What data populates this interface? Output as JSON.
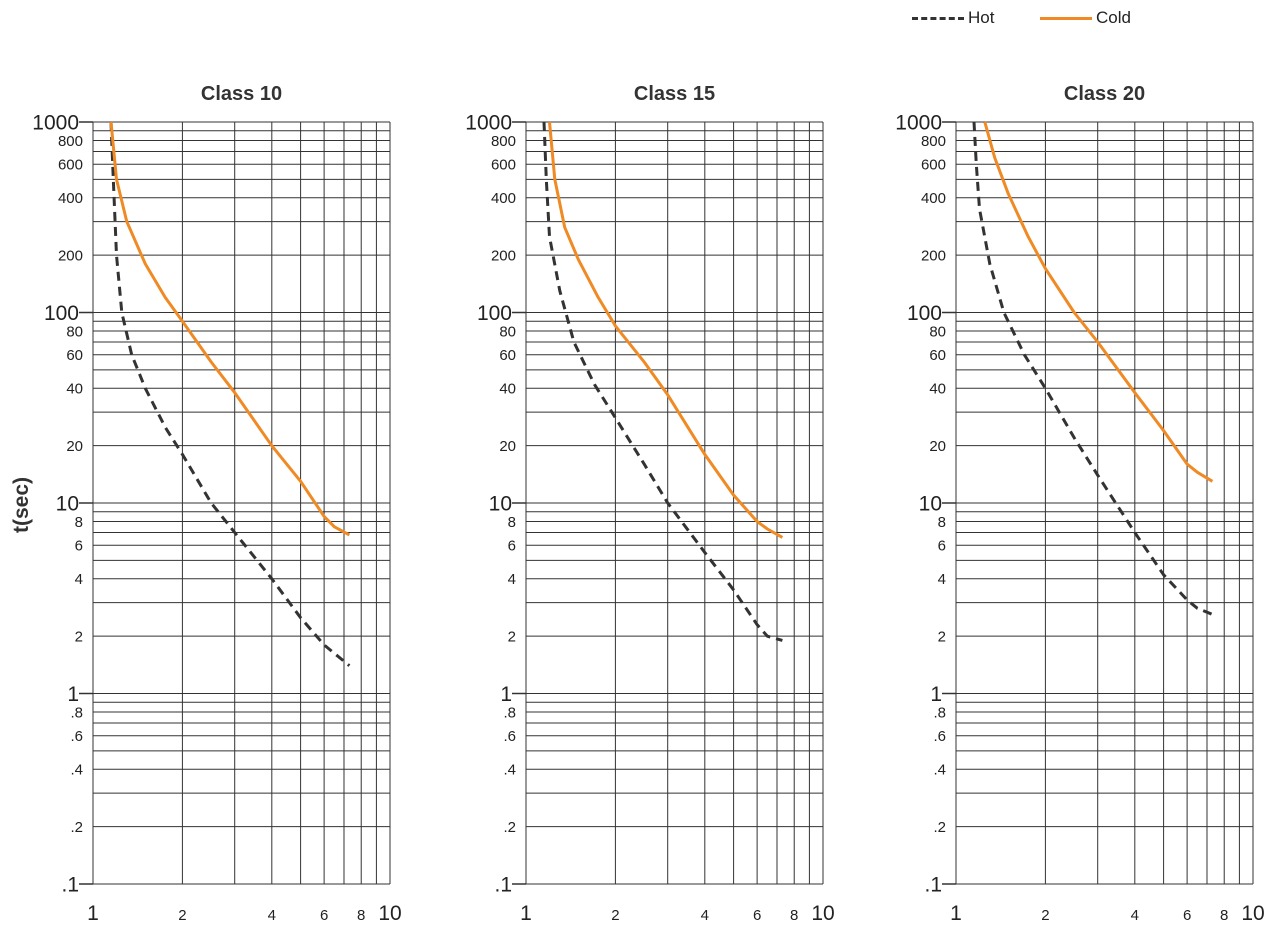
{
  "legend": {
    "hot_label": "Hot",
    "cold_label": "Cold"
  },
  "ylabel": "t(sec)",
  "colors": {
    "hot": "#333333",
    "cold": "#f08a24",
    "grid": "#333333"
  },
  "chart_data": [
    {
      "type": "line",
      "title": "Class 10",
      "xscale": "log",
      "yscale": "log",
      "xlim": [
        1,
        10
      ],
      "ylim": [
        0.1,
        1000
      ],
      "xticks": [
        "1",
        "2",
        "4",
        "6",
        "8",
        "10"
      ],
      "yticks": [
        ".1",
        ".2",
        ".4",
        ".6",
        ".8",
        "1",
        "2",
        "4",
        "6",
        "8",
        "10",
        "20",
        "40",
        "60",
        "80",
        "100",
        "200",
        "400",
        "600",
        "800",
        "1000"
      ],
      "grid": true,
      "series": [
        {
          "name": "Hot",
          "style": "dashed",
          "x": [
            1.15,
            1.17,
            1.2,
            1.25,
            1.35,
            1.5,
            1.75,
            2,
            2.5,
            3,
            4,
            5,
            6,
            7.3
          ],
          "y": [
            1000,
            500,
            200,
            100,
            60,
            40,
            25,
            18,
            10,
            7,
            4,
            2.5,
            1.8,
            1.4
          ]
        },
        {
          "name": "Cold",
          "style": "solid",
          "x": [
            1.15,
            1.2,
            1.3,
            1.5,
            1.75,
            2,
            2.5,
            3,
            4,
            5,
            6,
            6.5,
            7.3
          ],
          "y": [
            1000,
            500,
            300,
            180,
            120,
            90,
            55,
            38,
            20,
            13,
            8.5,
            7.5,
            6.8
          ]
        }
      ]
    },
    {
      "type": "line",
      "title": "Class 15",
      "xscale": "log",
      "yscale": "log",
      "xlim": [
        1,
        10
      ],
      "ylim": [
        0.1,
        1000
      ],
      "xticks": [
        "1",
        "2",
        "4",
        "6",
        "8",
        "10"
      ],
      "yticks": [
        ".1",
        ".2",
        ".4",
        ".6",
        ".8",
        "1",
        "2",
        "4",
        "6",
        "8",
        "10",
        "20",
        "40",
        "60",
        "80",
        "100",
        "200",
        "400",
        "600",
        "800",
        "1000"
      ],
      "grid": true,
      "series": [
        {
          "name": "Hot",
          "style": "dashed",
          "x": [
            1.15,
            1.17,
            1.2,
            1.3,
            1.45,
            1.7,
            2,
            2.5,
            3,
            4,
            5,
            6,
            6.5,
            7.3
          ],
          "y": [
            1000,
            500,
            250,
            130,
            70,
            42,
            28,
            16,
            10,
            5.5,
            3.5,
            2.3,
            2,
            1.9
          ]
        },
        {
          "name": "Cold",
          "style": "solid",
          "x": [
            1.2,
            1.25,
            1.35,
            1.5,
            1.75,
            2,
            2.5,
            3,
            4,
            5,
            6,
            6.5,
            7.3
          ],
          "y": [
            1000,
            500,
            280,
            190,
            120,
            85,
            55,
            37,
            18,
            11,
            8,
            7.3,
            6.6
          ]
        }
      ]
    },
    {
      "type": "line",
      "title": "Class 20",
      "xscale": "log",
      "yscale": "log",
      "xlim": [
        1,
        10
      ],
      "ylim": [
        0.1,
        1000
      ],
      "xticks": [
        "1",
        "2",
        "4",
        "6",
        "8",
        "10"
      ],
      "yticks": [
        ".1",
        ".2",
        ".4",
        ".6",
        ".8",
        "1",
        "2",
        "4",
        "6",
        "8",
        "10",
        "20",
        "40",
        "60",
        "80",
        "100",
        "200",
        "400",
        "600",
        "800",
        "1000"
      ],
      "grid": true,
      "series": [
        {
          "name": "Hot",
          "style": "dashed",
          "x": [
            1.15,
            1.17,
            1.2,
            1.3,
            1.45,
            1.7,
            2,
            2.5,
            3,
            4,
            5,
            6,
            6.5,
            7.3
          ],
          "y": [
            1000,
            600,
            350,
            180,
            100,
            60,
            40,
            22,
            14,
            7,
            4.2,
            3.1,
            2.8,
            2.6
          ]
        },
        {
          "name": "Cold",
          "style": "solid",
          "x": [
            1.25,
            1.35,
            1.5,
            1.75,
            2,
            2.5,
            3,
            4,
            5,
            6,
            6.5,
            7.3
          ],
          "y": [
            1000,
            650,
            420,
            250,
            170,
            100,
            70,
            38,
            24,
            16,
            14.5,
            13
          ]
        }
      ]
    }
  ]
}
